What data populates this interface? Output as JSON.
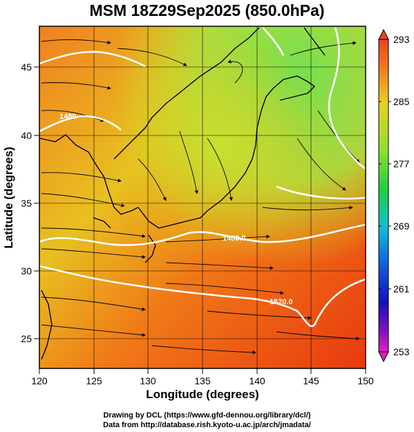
{
  "title": "MSM 18Z29Sep2025 (850.0hPa)",
  "xlabel": "Longitude (degrees)",
  "ylabel": "Latitude  (degrees)",
  "x_ticks": [
    "120",
    "125",
    "130",
    "135",
    "140",
    "145",
    "150"
  ],
  "y_ticks": [
    "25",
    "30",
    "35",
    "40",
    "45"
  ],
  "colorbar_ticks": [
    "293",
    "285",
    "277",
    "269",
    "261",
    "253"
  ],
  "contour_labels": [
    "1480.0",
    "1520.0",
    "1480"
  ],
  "credits": {
    "line1": "Drawing by DCL (https://www.gfd-dennou.org/library/dcl/)",
    "line2": "Data from http://database.rish.kyoto-u.ac.jp/arch/jmadata/"
  },
  "colors": {
    "warm": "#f05a14",
    "hot": "#e83a10",
    "mid": "#f0a020",
    "cool_yellow": "#d8d820",
    "green": "#90e040",
    "contour": "#ffffff",
    "vector": "#000000"
  },
  "chart_data": {
    "type": "heatmap",
    "variable": "temperature (K), geopotential height contours, wind streamlines",
    "xlim": [
      120,
      150
    ],
    "ylim": [
      22.5,
      47.6
    ],
    "colorbar_range": [
      253,
      293
    ],
    "contour_levels": [
      1480,
      1520
    ]
  }
}
